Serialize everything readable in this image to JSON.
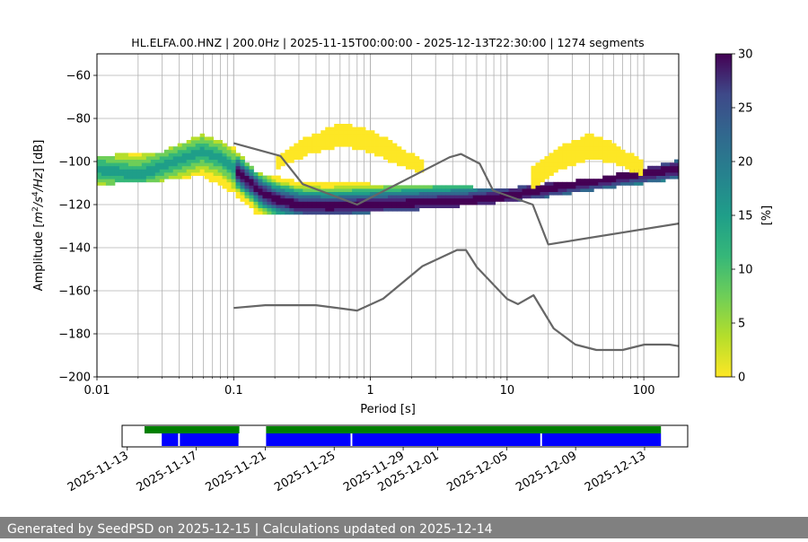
{
  "chart_data": [
    {
      "type": "heatmap",
      "title": "HL.ELFA.00.HNZ | 200.0Hz | 2025-11-15T00:00:00 - 2025-12-13T22:30:00 | 1274 segments",
      "xlabel": "Period [s]",
      "ylabel_parts": [
        "Amplitude [",
        "m",
        "2",
        "/",
        "s",
        "4",
        "/",
        "Hz",
        "] [dB]"
      ],
      "xscale": "log",
      "xlim": [
        0.01,
        180
      ],
      "ylim": [
        -200,
        -50
      ],
      "xtick_values": [
        0.01,
        0.1,
        1,
        10,
        100
      ],
      "xtick_labels": [
        "0.01",
        "0.1",
        "1",
        "10",
        "100"
      ],
      "ytick_values": [
        -200,
        -180,
        -160,
        -140,
        -120,
        -100,
        -80,
        -60
      ],
      "ytick_labels": [
        "−200",
        "−180",
        "−160",
        "−140",
        "−120",
        "−100",
        "−80",
        "−60"
      ],
      "grid": true,
      "colorbar": {
        "label": "[%]",
        "range": [
          0,
          30
        ],
        "tick_values": [
          0,
          5,
          10,
          15,
          20,
          25,
          30
        ],
        "tick_labels": [
          "0",
          "5",
          "10",
          "15",
          "20",
          "25",
          "30"
        ],
        "colormap": "viridis_r"
      },
      "mode_curve": {
        "period": [
          0.01,
          0.02,
          0.04,
          0.06,
          0.08,
          0.1,
          0.13,
          0.16,
          0.2,
          0.3,
          0.5,
          0.8,
          1.2,
          2,
          3,
          5,
          8,
          12,
          20,
          40,
          80,
          180
        ],
        "db": [
          -104,
          -107,
          -100,
          -96,
          -99,
          -104,
          -110,
          -115,
          -118,
          -121,
          -121.5,
          -121,
          -120.5,
          -120,
          -119.5,
          -119,
          -117.5,
          -116,
          -113,
          -110,
          -107,
          -104
        ]
      },
      "bands": [
        {
          "name": "main",
          "period": [
            0.01,
            0.03,
            0.06,
            0.1,
            0.15,
            0.3,
            1,
            3,
            10,
            50,
            180
          ],
          "low": [
            -110,
            -108,
            -106,
            -114,
            -124,
            -124,
            -123,
            -121,
            -118,
            -112,
            -107
          ],
          "high": [
            -98,
            -96,
            -88,
            -94,
            -106,
            -110,
            -111,
            -112,
            -113,
            -108,
            -100
          ]
        },
        {
          "name": "upper-arch-1",
          "period": [
            0.2,
            0.35,
            0.6,
            1.0,
            1.5,
            2.5
          ],
          "low": [
            -103,
            -96,
            -92,
            -95,
            -100,
            -105
          ],
          "high": [
            -99,
            -89,
            -83,
            -86,
            -92,
            -101
          ]
        },
        {
          "name": "upper-arch-2",
          "period": [
            15,
            25,
            40,
            60,
            100
          ],
          "low": [
            -112,
            -103,
            -98,
            -100,
            -106
          ],
          "high": [
            -104,
            -93,
            -88,
            -92,
            -101
          ]
        }
      ],
      "nlnm": {
        "period": [
          0.1,
          0.17,
          0.4,
          0.8,
          1.24,
          2.4,
          4.3,
          5,
          6,
          10,
          12,
          15.6,
          21.9,
          31.6,
          45,
          70,
          101,
          154,
          180
        ],
        "db": [
          -168,
          -166.7,
          -166.7,
          -169.2,
          -163.7,
          -148.6,
          -141.1,
          -141.1,
          -149,
          -163.8,
          -166.2,
          -162.1,
          -177.5,
          -185,
          -187.5,
          -187.5,
          -185,
          -185,
          -185.7
        ]
      },
      "nhnm": {
        "period": [
          0.1,
          0.22,
          0.32,
          0.8,
          3.8,
          4.6,
          6.3,
          7.9,
          15.4,
          20,
          180
        ],
        "db": [
          -91.5,
          -97.4,
          -110.5,
          -120,
          -98,
          -96.5,
          -101,
          -113.5,
          -120,
          -138.5,
          -128.8
        ]
      }
    },
    {
      "type": "availability",
      "xlim_days": [
        -0.3,
        32.5
      ],
      "date_labels": [
        "2025-11-13",
        "2025-11-17",
        "2025-11-21",
        "2025-11-25",
        "2025-11-29",
        "2025-12-01",
        "2025-12-05",
        "2025-12-09",
        "2025-12-13"
      ],
      "date_offsets_days": [
        0,
        4,
        8,
        12,
        16,
        18,
        22,
        26,
        30
      ],
      "data_available": [
        [
          1.0,
          6.5
        ],
        [
          8.05,
          30.95
        ]
      ],
      "used_segments": [
        [
          2.0,
          2.95
        ],
        [
          3.05,
          6.45
        ],
        [
          8.05,
          12.95
        ],
        [
          13.05,
          23.95
        ],
        [
          24.05,
          30.95
        ]
      ],
      "colors": {
        "available": "#008000",
        "used": "#0000ff"
      }
    }
  ],
  "footer_text": "Generated by SeedPSD on 2025-12-15 | Calculations updated on 2025-12-14"
}
